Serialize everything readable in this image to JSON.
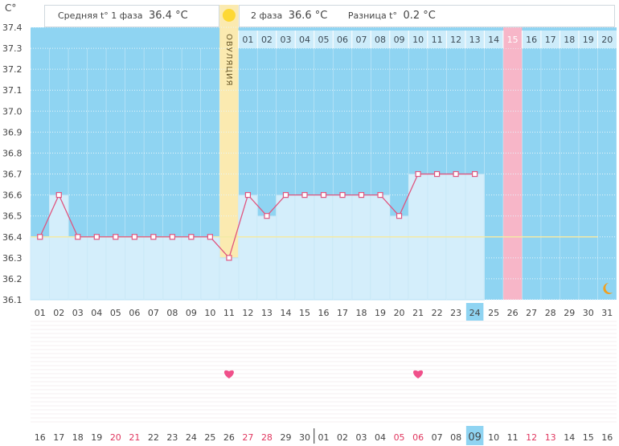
{
  "axis_unit": "C°",
  "summary": {
    "phase1_label": "Средняя t° 1 фаза",
    "phase1_value": "36.4 °C",
    "phase2_label": "2 фаза",
    "phase2_value": "36.6 °C",
    "diff_label": "Разница t°",
    "diff_value": "0.2 °C"
  },
  "ovulation_label": "ОВУЛЯЦИЯ",
  "colors": {
    "bg_blue": "#8fd4f2",
    "bar_fill": "#d4eefb",
    "line": "#e0557f",
    "ovulation": "#fbeab0",
    "pink_day": "#f7b6c8",
    "coverline": "#f3eaa6",
    "heart": "#f0508a",
    "highlight": "#8fd4f2"
  },
  "chart_data": {
    "type": "line",
    "title": "Средняя t° 1 фаза 36.4 °C | 2 фаза 36.6 °C | Разница t° 0.2 °C",
    "ylabel": "C°",
    "ylim": [
      36.1,
      37.4
    ],
    "yticks": [
      "37.4",
      "37.3",
      "37.2",
      "37.1",
      "37.0",
      "36.9",
      "36.8",
      "36.7",
      "36.6",
      "36.5",
      "36.4",
      "36.3",
      "36.2",
      "36.1"
    ],
    "cycle_days": [
      "01",
      "02",
      "03",
      "04",
      "05",
      "06",
      "07",
      "08",
      "09",
      "10",
      "11",
      "12",
      "13",
      "14",
      "15",
      "16",
      "17",
      "18",
      "19",
      "20",
      "21",
      "22",
      "23",
      "24",
      "25",
      "26",
      "27",
      "28",
      "29",
      "30",
      "31"
    ],
    "temperatures": [
      36.4,
      36.6,
      36.4,
      36.4,
      36.4,
      36.4,
      36.4,
      36.4,
      36.4,
      36.4,
      36.3,
      36.6,
      36.5,
      36.6,
      36.6,
      36.6,
      36.6,
      36.6,
      36.6,
      36.5,
      36.7,
      36.7,
      36.7,
      36.7
    ],
    "coverline": 36.4,
    "ovulation_day": 11,
    "phase2_days": [
      "01",
      "02",
      "03",
      "04",
      "05",
      "06",
      "07",
      "08",
      "09",
      "10",
      "11",
      "12",
      "13",
      "14",
      "15",
      "16",
      "17",
      "18",
      "19",
      "20"
    ],
    "highlight_day": 26,
    "today_day": 24,
    "heart_days": [
      11,
      21
    ],
    "moon_day": 31,
    "calendar_dates": [
      "16",
      "17",
      "18",
      "19",
      "20",
      "21",
      "22",
      "23",
      "24",
      "25",
      "26",
      "27",
      "28",
      "29",
      "30",
      "01",
      "02",
      "03",
      "04",
      "05",
      "06",
      "07",
      "08",
      "09",
      "10",
      "11",
      "12",
      "13",
      "14",
      "15",
      "16"
    ],
    "calendar_red_indices": [
      4,
      5,
      11,
      12,
      19,
      20,
      26,
      27
    ],
    "calendar_highlight_index": 23
  }
}
